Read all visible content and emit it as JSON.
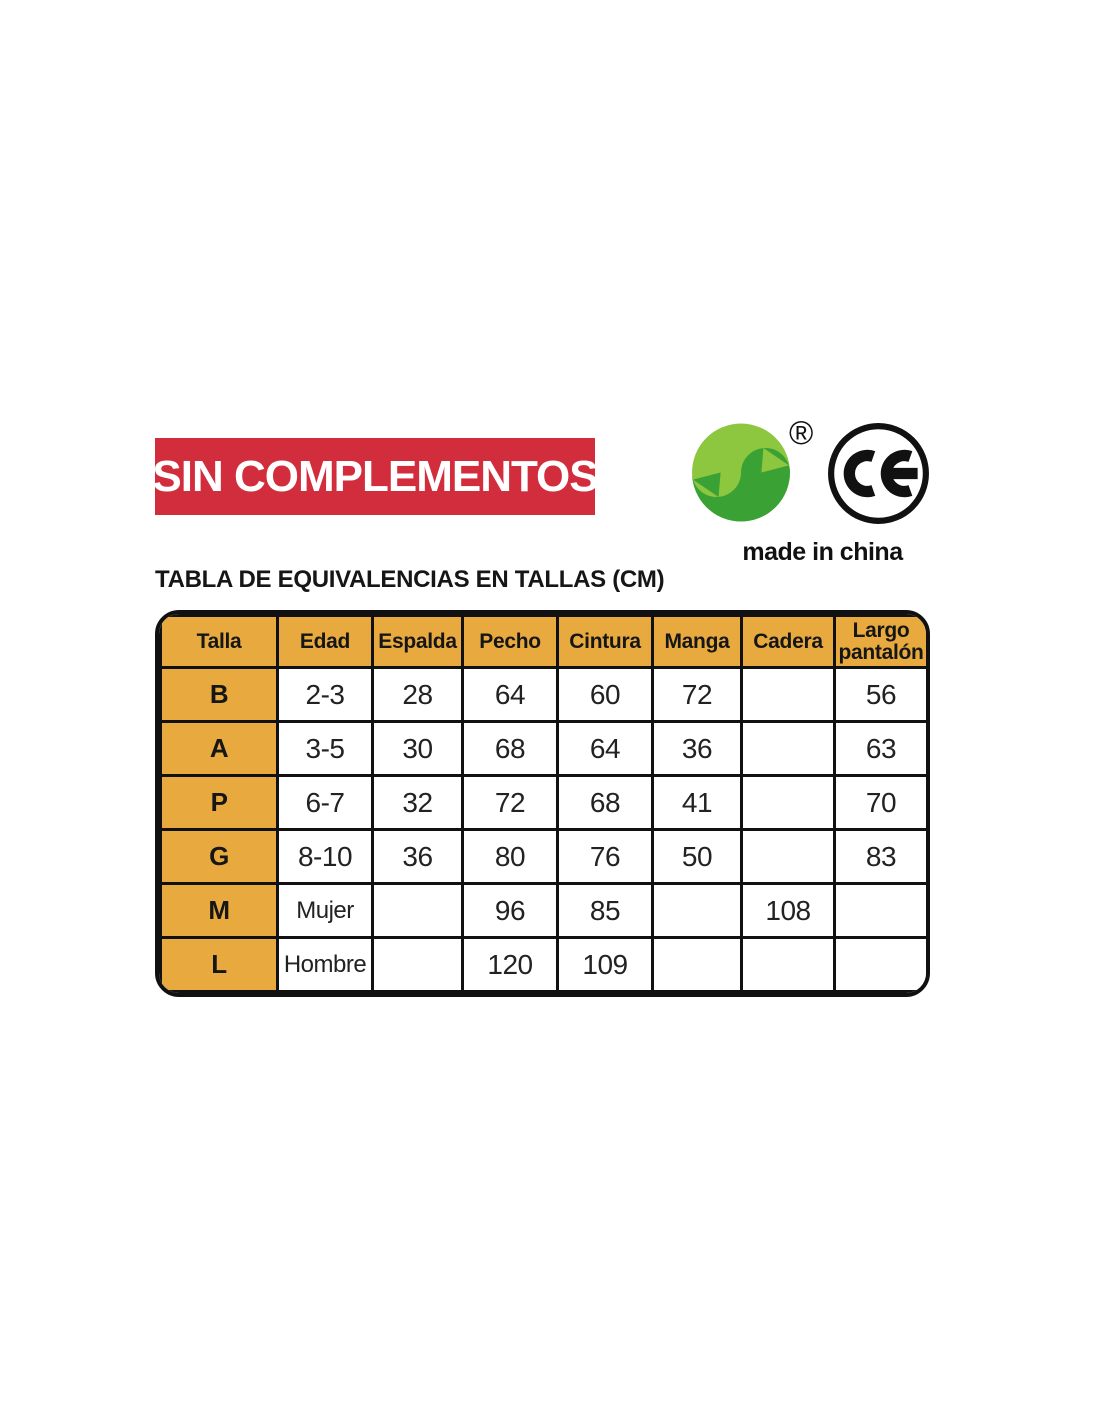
{
  "banner": {
    "label": "SIN COMPLEMENTOS",
    "bg_color": "#d22d3c",
    "text_color": "#ffffff"
  },
  "logos": {
    "green_dot_icon": "green-dot-recycling-symbol",
    "registered_mark": "®",
    "ce_label": "CE",
    "made_in_label": "made in china",
    "colors": {
      "green_dark": "#3aa135",
      "green_light": "#8dc63f",
      "ce_black": "#111111"
    }
  },
  "table": {
    "title": "TABLA DE EQUIVALENCIAS EN TALLAS (CM)",
    "header_bg": "#e8a93e",
    "headers": [
      "Talla",
      "Edad",
      "Espalda",
      "Pecho",
      "Cintura",
      "Manga",
      "Cadera",
      "Largo pantalón"
    ],
    "rows": [
      [
        "B",
        "2-3",
        "28",
        "64",
        "60",
        "72",
        "",
        "56"
      ],
      [
        "A",
        "3-5",
        "30",
        "68",
        "64",
        "36",
        "",
        "63"
      ],
      [
        "P",
        "6-7",
        "32",
        "72",
        "68",
        "41",
        "",
        "70"
      ],
      [
        "G",
        "8-10",
        "36",
        "80",
        "76",
        "50",
        "",
        "83"
      ],
      [
        "M",
        "Mujer",
        "",
        "96",
        "85",
        "",
        "108",
        ""
      ],
      [
        "L",
        "Hombre",
        "",
        "120",
        "109",
        "",
        "",
        ""
      ]
    ]
  }
}
